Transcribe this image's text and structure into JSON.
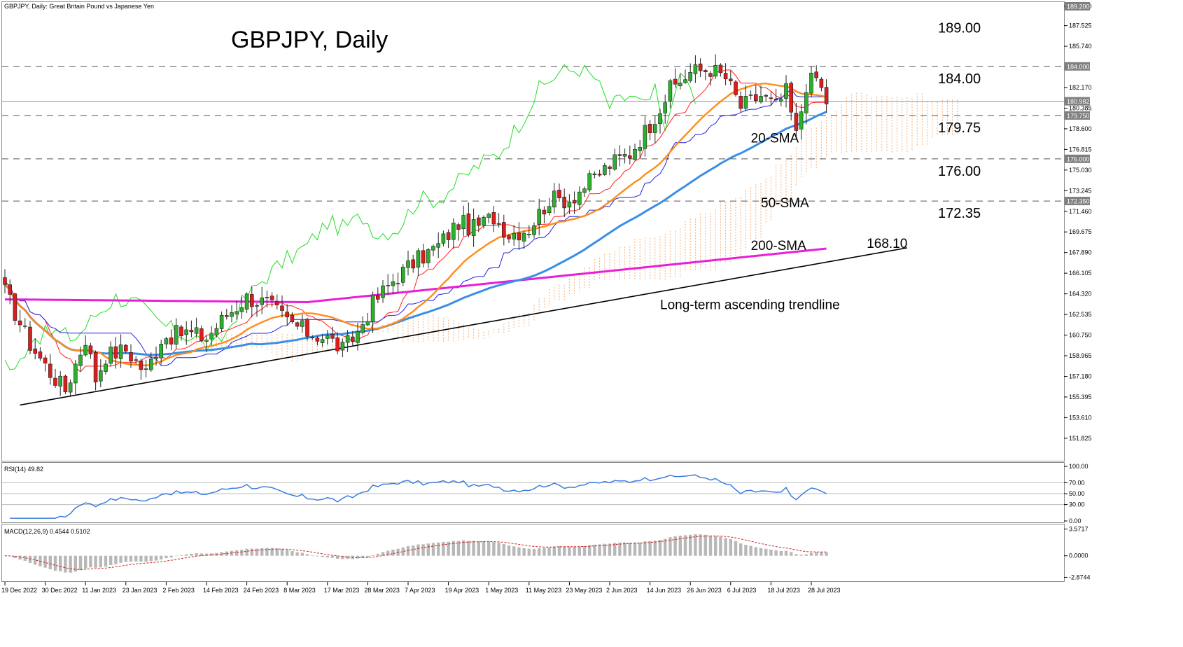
{
  "chart_data": {
    "type": "candlestick",
    "symbol_info": "GBPJPY, Daily:  Great Britain Pound vs Japanese Yen",
    "title": "GBPJPY, Daily",
    "price_axis": {
      "ylim": [
        150.0,
        189.5
      ],
      "ticks": [
        "189.200",
        "187.525",
        "185.740",
        "182.170",
        "180.385",
        "178.600",
        "176.815",
        "175.030",
        "173.245",
        "171.460",
        "169.675",
        "167.890",
        "166.105",
        "164.320",
        "162.535",
        "160.750",
        "158.965",
        "157.180",
        "155.395",
        "153.610",
        "151.825"
      ],
      "highlight_labels": [
        {
          "text": "189.200",
          "price": 189.2,
          "bg": "#7f7f7f"
        },
        {
          "text": "184.000",
          "price": 184.0,
          "bg": "#7f7f7f"
        },
        {
          "text": "180.982",
          "price": 180.982,
          "bg": "#7f7f7f"
        },
        {
          "text": "179.750",
          "price": 179.75,
          "bg": "#7f7f7f"
        },
        {
          "text": "176.000",
          "price": 176.0,
          "bg": "#7f7f7f"
        },
        {
          "text": "172.350",
          "price": 172.35,
          "bg": "#7f7f7f"
        }
      ]
    },
    "x_axis": {
      "labels": [
        "19 Dec 2022",
        "30 Dec 2022",
        "11 Jan 2023",
        "23 Jan 2023",
        "2 Feb 2023",
        "14 Feb 2023",
        "24 Feb 2023",
        "8 Mar 2023",
        "17 Mar 2023",
        "28 Mar 2023",
        "7 Apr 2023",
        "19 Apr 2023",
        "1 May 2023",
        "11 May 2023",
        "23 May 2023",
        "2 Jun 2023",
        "14 Jun 2023",
        "26 Jun 2023",
        "6 Jul 2023",
        "18 Jul 2023",
        "28 Jul 2023"
      ],
      "label_bar_index": [
        0,
        8,
        16,
        24,
        32,
        40,
        48,
        56,
        64,
        72,
        80,
        88,
        96,
        104,
        112,
        120,
        128,
        136,
        144,
        152,
        160
      ]
    },
    "levels": [
      {
        "price": 189.0,
        "text": "189.00",
        "dashed": false
      },
      {
        "price": 184.0,
        "text": "184.00",
        "dashed": true
      },
      {
        "price": 179.75,
        "text": "179.75",
        "dashed": true
      },
      {
        "price": 176.0,
        "text": "176.00",
        "dashed": true
      },
      {
        "price": 172.35,
        "text": "172.35",
        "dashed": true
      }
    ],
    "current_price": 180.982,
    "annotations": [
      {
        "text": "20-SMA",
        "bar": 148,
        "price": 177.4
      },
      {
        "text": "50-SMA",
        "bar": 150,
        "price": 171.8
      },
      {
        "text": "200-SMA",
        "bar": 148,
        "price": 168.1
      },
      {
        "text": "168.10",
        "bar": 171,
        "price": 168.3
      },
      {
        "text": "Long-term ascending trendline",
        "bar": 130,
        "price": 163.0
      }
    ],
    "trendline": {
      "from": {
        "bar": 3,
        "price": 154.7
      },
      "to": {
        "bar": 179,
        "price": 168.3
      }
    },
    "price_anchors": [
      [
        0,
        164.5
      ],
      [
        5,
        160
      ],
      [
        9,
        157.5
      ],
      [
        12,
        156
      ],
      [
        16,
        160.5
      ],
      [
        18,
        157
      ],
      [
        20,
        159
      ],
      [
        24,
        159.5
      ],
      [
        28,
        157.5
      ],
      [
        31,
        160.5
      ],
      [
        36,
        161
      ],
      [
        40,
        160.5
      ],
      [
        44,
        162.5
      ],
      [
        48,
        164
      ],
      [
        52,
        163.5
      ],
      [
        56,
        162
      ],
      [
        60,
        161
      ],
      [
        64,
        160.5
      ],
      [
        67,
        159.5
      ],
      [
        70,
        161
      ],
      [
        73,
        163.5
      ],
      [
        77,
        165.5
      ],
      [
        81,
        167
      ],
      [
        86,
        168.5
      ],
      [
        90,
        170.5
      ],
      [
        93,
        170
      ],
      [
        97,
        171
      ],
      [
        100,
        169.5
      ],
      [
        104,
        170
      ],
      [
        108,
        172.5
      ],
      [
        112,
        172.5
      ],
      [
        116,
        174
      ],
      [
        120,
        175.5
      ],
      [
        124,
        176.5
      ],
      [
        128,
        179
      ],
      [
        132,
        182
      ],
      [
        136,
        183.5
      ],
      [
        140,
        183.8
      ],
      [
        143,
        183
      ],
      [
        146,
        180.5
      ],
      [
        150,
        181.5
      ],
      [
        153,
        180.5
      ],
      [
        155,
        181.8
      ],
      [
        157,
        178
      ],
      [
        159,
        182.5
      ],
      [
        161,
        183
      ],
      [
        163,
        181
      ]
    ],
    "indicators_main": [
      "SMA 20",
      "SMA 50",
      "SMA 200",
      "Ichimoku Kinko Hyo"
    ],
    "rsi": {
      "label": "RSI(14) 49.82",
      "ylim": [
        0,
        100
      ],
      "ticks": [
        "100.00",
        "70.00",
        "50.00",
        "30.00",
        "0.00"
      ],
      "levels": [
        70,
        50,
        30
      ],
      "last_value": 49.82
    },
    "macd": {
      "label": "MACD(12,26,9) 0.4544 0.5102",
      "params": "12,26,9",
      "main_last": 0.4544,
      "signal_last": 0.5102,
      "ylim": [
        -3.3,
        3.9
      ],
      "ticks": [
        "3.5717",
        "0.0000",
        "-2.8744"
      ]
    },
    "series_colors": {
      "sma20": "#ff8c1a",
      "sma50": "#3a8ee6",
      "sma200": "#e81ed9",
      "tenkan": "#ff2020",
      "kijun": "#2020e0",
      "chikou": "#22dd22",
      "cloud": "#f2a060",
      "bull": "#2bb02b",
      "bear": "#dd1c1c",
      "rsi": "#3b7de0",
      "macd_hist": "#b8b8b8",
      "macd_signal": "#d02020"
    }
  }
}
